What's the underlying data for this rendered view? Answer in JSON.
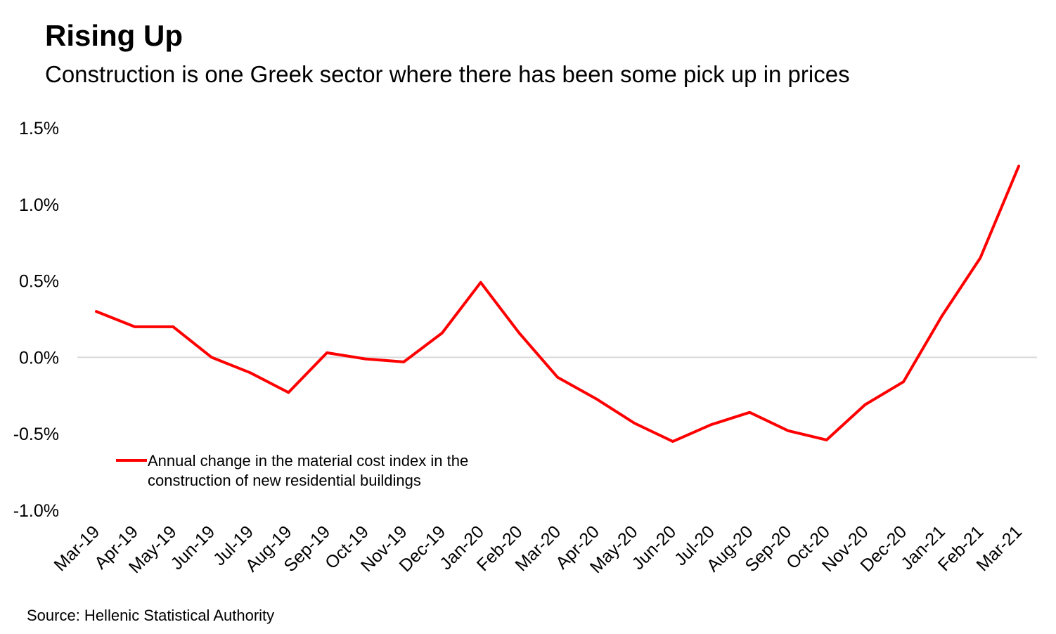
{
  "title": "Rising Up",
  "subtitle": "Construction is one Greek sector where there has been some pick up in prices",
  "source": "Source: Hellenic Statistical Authority",
  "chart_data": {
    "type": "line",
    "categories": [
      "Mar-19",
      "Apr-19",
      "May-19",
      "Jun-19",
      "Jul-19",
      "Aug-19",
      "Sep-19",
      "Oct-19",
      "Nov-19",
      "Dec-19",
      "Jan-20",
      "Feb-20",
      "Mar-20",
      "Apr-20",
      "May-20",
      "Jun-20",
      "Jul-20",
      "Aug-20",
      "Sep-20",
      "Oct-20",
      "Nov-20",
      "Dec-20",
      "Jan-21",
      "Feb-21",
      "Mar-21"
    ],
    "series": [
      {
        "name": "Annual change in the material cost index in the construction of new residential buildings",
        "legend_lines": [
          "Annual change in the material cost index in the",
          "construction of new residential buildings"
        ],
        "color": "#ff0000",
        "values": [
          0.3,
          0.2,
          0.2,
          0.0,
          -0.1,
          -0.23,
          0.03,
          -0.01,
          -0.03,
          0.16,
          0.49,
          0.16,
          -0.13,
          -0.27,
          -0.43,
          -0.55,
          -0.44,
          -0.36,
          -0.48,
          -0.54,
          -0.31,
          -0.16,
          0.27,
          0.65,
          1.25
        ]
      }
    ],
    "yticks": [
      "1.5%",
      "1.0%",
      "0.5%",
      "0.0%",
      "-0.5%",
      "-1.0%"
    ],
    "ytick_values": [
      1.5,
      1.0,
      0.5,
      0.0,
      -0.5,
      -1.0
    ],
    "ylim": [
      -1.0,
      1.5
    ],
    "grid": false,
    "zero_line": true,
    "legend_position": "bottom-left"
  }
}
